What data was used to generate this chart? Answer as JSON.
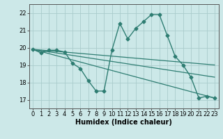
{
  "title": "",
  "xlabel": "Humidex (Indice chaleur)",
  "background_color": "#cce8e8",
  "line_color": "#2e7d72",
  "xlim": [
    -0.5,
    23.5
  ],
  "ylim": [
    16.5,
    22.5
  ],
  "yticks": [
    17,
    18,
    19,
    20,
    21,
    22
  ],
  "xticks": [
    0,
    1,
    2,
    3,
    4,
    5,
    6,
    7,
    8,
    9,
    10,
    11,
    12,
    13,
    14,
    15,
    16,
    17,
    18,
    19,
    20,
    21,
    22,
    23
  ],
  "lines": [
    {
      "x": [
        0,
        1,
        2,
        3,
        4,
        5,
        6,
        7,
        8,
        9,
        10,
        11,
        12,
        13,
        14,
        15,
        16,
        17,
        18,
        19,
        20,
        21,
        22,
        23
      ],
      "y": [
        19.9,
        19.7,
        19.85,
        19.85,
        19.75,
        19.1,
        18.8,
        18.1,
        17.5,
        17.5,
        19.85,
        21.4,
        20.5,
        21.1,
        21.5,
        21.9,
        21.9,
        20.7,
        19.5,
        19.0,
        18.3,
        17.1,
        17.2,
        17.1
      ],
      "marker": "D",
      "markersize": 2.5,
      "linewidth": 1.0
    },
    {
      "x": [
        0,
        23
      ],
      "y": [
        19.9,
        19.0
      ],
      "marker": null,
      "linewidth": 0.9
    },
    {
      "x": [
        0,
        23
      ],
      "y": [
        19.9,
        18.3
      ],
      "marker": null,
      "linewidth": 0.9
    },
    {
      "x": [
        0,
        23
      ],
      "y": [
        19.9,
        17.1
      ],
      "marker": null,
      "linewidth": 0.9
    }
  ],
  "grid_color": "#aacccc",
  "tick_fontsize": 6.0,
  "xlabel_fontsize": 7.0,
  "xlabel_fontweight": "bold"
}
